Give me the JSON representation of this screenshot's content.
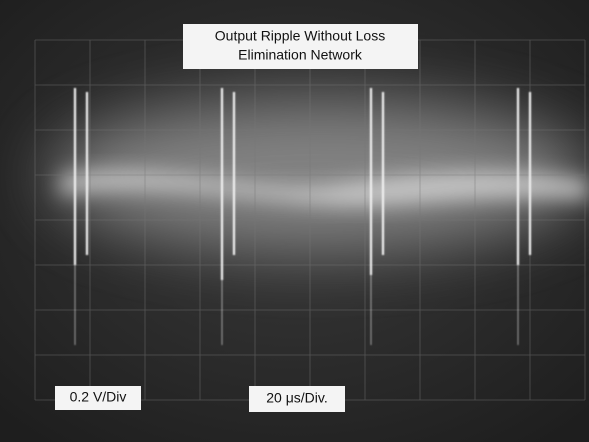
{
  "title": [
    "Output Ripple Without Loss",
    "Elimination Network"
  ],
  "labels": {
    "vertical_scale": "0.2 V/Div",
    "horizontal_scale": "20 μs/Div."
  }
}
